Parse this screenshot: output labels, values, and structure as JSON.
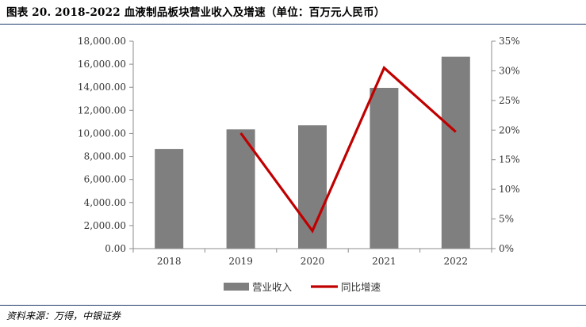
{
  "title": "图表 20. 2018-2022 血液制品板块营业收入及增速（单位：百万元人民币）",
  "source": "资料来源：万得，中银证券",
  "colors": {
    "bar": "#7f7f7f",
    "line": "#c00000",
    "axis": "#8c8c8c",
    "rule": "#1f3a6b"
  },
  "chart_data": {
    "type": "bar",
    "categories": [
      "2018",
      "2019",
      "2020",
      "2021",
      "2022"
    ],
    "series": [
      {
        "name": "营业收入",
        "type": "bar",
        "axis": "left",
        "values": [
          8650,
          10350,
          10700,
          13950,
          16650
        ]
      },
      {
        "name": "同比增速",
        "type": "line",
        "axis": "right",
        "values": [
          null,
          19.5,
          3.0,
          30.5,
          19.7
        ]
      }
    ],
    "y_left": {
      "min": 0,
      "max": 18000,
      "step": 2000,
      "tick_labels": [
        "0.00",
        "2,000.00",
        "4,000.00",
        "6,000.00",
        "8,000.00",
        "10,000.00",
        "12,000.00",
        "14,000.00",
        "16,000.00",
        "18,000.00"
      ]
    },
    "y_right": {
      "min": 0,
      "max": 35,
      "step": 5,
      "tick_labels": [
        "0%",
        "5%",
        "10%",
        "15%",
        "20%",
        "25%",
        "30%",
        "35%"
      ]
    },
    "grid": false,
    "legend_position": "bottom"
  }
}
